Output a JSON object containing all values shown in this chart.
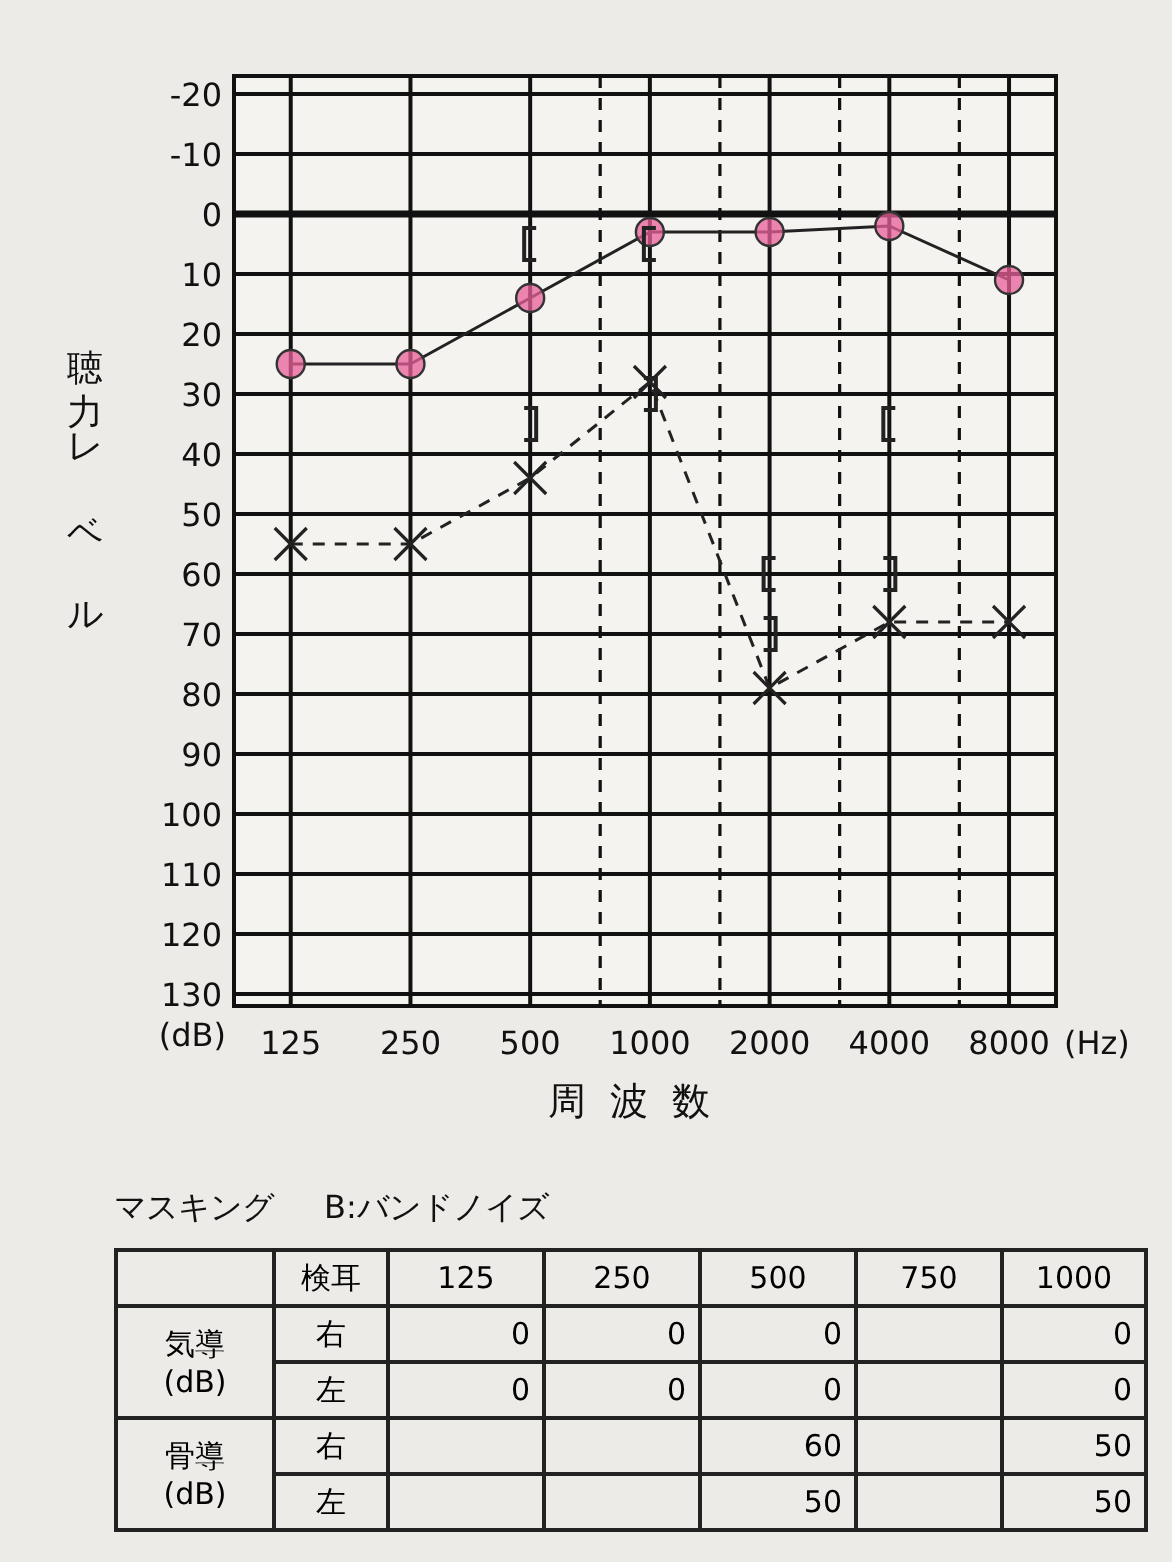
{
  "chart_data": [
    {
      "type": "line",
      "xlabel": "周波数",
      "ylabel": "聴力レベル",
      "log": "x",
      "xlim": [
        90,
        10500
      ],
      "xticks": [
        125,
        250,
        500,
        1000,
        2000,
        4000,
        8000
      ],
      "ylim": [
        132,
        -23
      ],
      "yticks": [
        -20,
        -10,
        0,
        10,
        20,
        30,
        40,
        50,
        60,
        70,
        80,
        90,
        100,
        110,
        120,
        130
      ],
      "grid": true,
      "ref_lines": [
        {
          "axis": "y",
          "value": 0,
          "line_style": "solid"
        },
        {
          "axis": "x",
          "value": 750,
          "line_style": "dashed"
        },
        {
          "axis": "x",
          "value": 1500,
          "line_style": "dashed"
        },
        {
          "axis": "x",
          "value": 3000,
          "line_style": "dashed"
        },
        {
          "axis": "x",
          "value": 6000,
          "line_style": "dashed"
        }
      ],
      "series": [
        {
          "type": "line",
          "color": "#e8609a",
          "marker": "circle",
          "line_style": "solid",
          "x": [
            125,
            250,
            500,
            1000,
            2000,
            4000,
            8000
          ],
          "values": [
            25,
            25,
            14,
            3,
            3,
            2,
            11
          ]
        },
        {
          "type": "line",
          "color": "#222222",
          "marker": "cross",
          "line_style": "dashed",
          "x": [
            125,
            250,
            500,
            1000,
            2000,
            4000,
            8000
          ],
          "values": [
            55,
            55,
            44,
            28,
            79,
            68,
            68
          ]
        },
        {
          "type": "scatter",
          "color": "#222222",
          "x": [
            500,
            1000,
            2000,
            4000
          ],
          "values": [
            5,
            5,
            60,
            35
          ]
        },
        {
          "type": "scatter",
          "color": "#222222",
          "x": [
            500,
            1000,
            2000,
            4000
          ],
          "values": [
            35,
            30,
            70,
            60
          ]
        }
      ],
      "annotations": [
        "(dB)",
        "(Hz)"
      ]
    },
    {
      "type": "heatmap",
      "title": "マスキング",
      "subtitle": "B:バンドノイズ",
      "data_labels": true,
      "categories": [
        "125",
        "250",
        "500",
        "750",
        "1000"
      ],
      "y_categories": [
        "右",
        "左",
        "右",
        "左"
      ],
      "cells": [
        [
          0,
          0,
          0,
          null,
          0
        ],
        [
          0,
          0,
          0,
          null,
          0
        ],
        [
          null,
          null,
          60,
          null,
          50
        ],
        [
          null,
          null,
          50,
          null,
          50
        ]
      ],
      "annotations": [
        "検耳",
        "気導 (dB)",
        "骨導 (dB)"
      ]
    }
  ]
}
